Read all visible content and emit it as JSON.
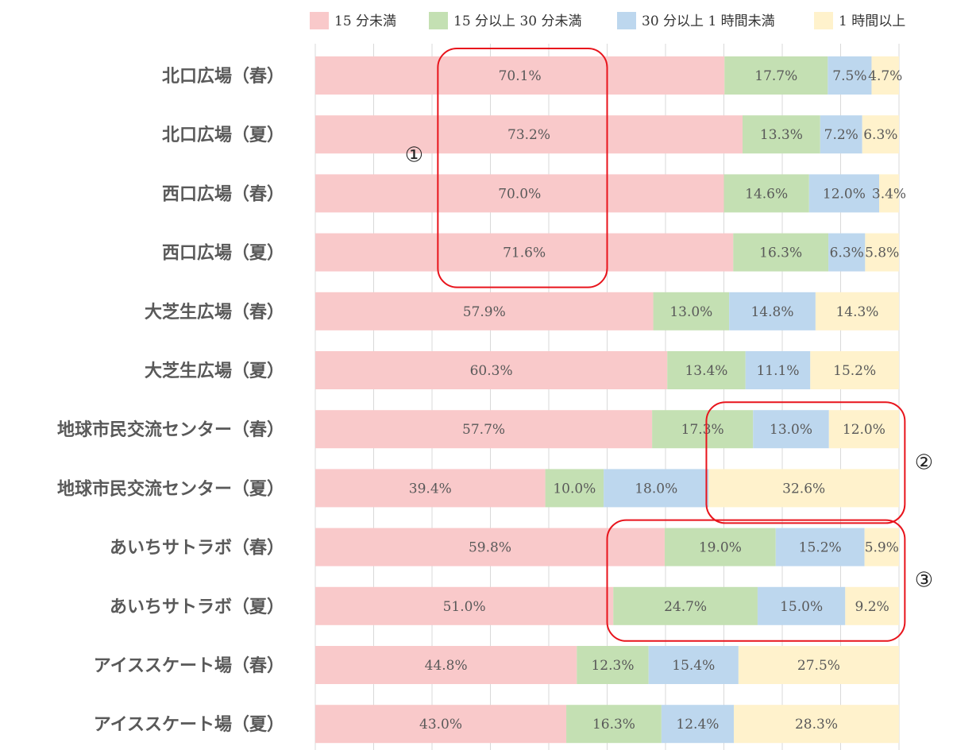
{
  "chart_data": {
    "type": "bar",
    "orientation": "horizontal",
    "stacked": "100%",
    "xlim": [
      0,
      100
    ],
    "grid": true,
    "legend_position": "top",
    "categories": [
      "北口広場（春）",
      "北口広場（夏）",
      "西口広場（春）",
      "西口広場（夏）",
      "大芝生広場（春）",
      "大芝生広場（夏）",
      "地球市民交流センター（春）",
      "地球市民交流センター（夏）",
      "あいちサトラボ（春）",
      "あいちサトラボ（夏）",
      "アイススケート場（春）",
      "アイススケート場（夏）"
    ],
    "series": [
      {
        "name": "15 分未満",
        "color": "#f9c9ca",
        "values": [
          70.1,
          73.2,
          70.0,
          71.6,
          57.9,
          60.3,
          57.7,
          39.4,
          59.8,
          51.0,
          44.8,
          43.0
        ],
        "labels": [
          "70.1%",
          "73.2%",
          "70.0%",
          "71.6%",
          "57.9%",
          "60.3%",
          "57.7%",
          "39.4%",
          "59.8%",
          "51.0%",
          "44.8%",
          "43.0%"
        ]
      },
      {
        "name": "15 分以上 30 分未満",
        "color": "#c4e0b3",
        "values": [
          17.7,
          13.3,
          14.6,
          16.3,
          13.0,
          13.4,
          17.3,
          10.0,
          19.0,
          24.7,
          12.3,
          16.3
        ],
        "labels": [
          "17.7%",
          "13.3%",
          "14.6%",
          "16.3%",
          "13.0%",
          "13.4%",
          "17.3%",
          "10.0%",
          "19.0%",
          "24.7%",
          "12.3%",
          "16.3%"
        ]
      },
      {
        "name": "30 分以上 1 時間未満",
        "color": "#bdd7ee",
        "values": [
          7.5,
          7.2,
          12.0,
          6.3,
          14.8,
          11.1,
          13.0,
          18.0,
          15.2,
          15.0,
          15.4,
          12.4
        ],
        "labels": [
          "7.5%",
          "7.2%",
          "12.0%",
          "6.3%",
          "14.8%",
          "11.1%",
          "13.0%",
          "18.0%",
          "15.2%",
          "15.0%",
          "15.4%",
          "12.4%"
        ]
      },
      {
        "name": "1 時間以上",
        "color": "#fff2cc",
        "values": [
          4.7,
          6.3,
          3.4,
          5.8,
          14.3,
          15.2,
          12.0,
          32.6,
          5.9,
          9.2,
          27.5,
          28.3
        ],
        "labels": [
          "4.7%",
          "6.3%",
          "3.4%",
          "5.8%",
          "14.3%",
          "15.2%",
          "12.0%",
          "32.6%",
          "5.9%",
          "9.2%",
          "27.5%",
          "28.3%"
        ]
      }
    ],
    "annotations": [
      {
        "label": "①",
        "color": "#e8141c",
        "rows": [
          0,
          3
        ],
        "x_range": [
          21,
          50
        ]
      },
      {
        "label": "②",
        "color": "#e8141c",
        "rows": [
          6,
          7
        ],
        "x_range": [
          67,
          101
        ]
      },
      {
        "label": "③",
        "color": "#e8141c",
        "rows": [
          8,
          9
        ],
        "x_range": [
          50,
          101
        ]
      }
    ]
  }
}
